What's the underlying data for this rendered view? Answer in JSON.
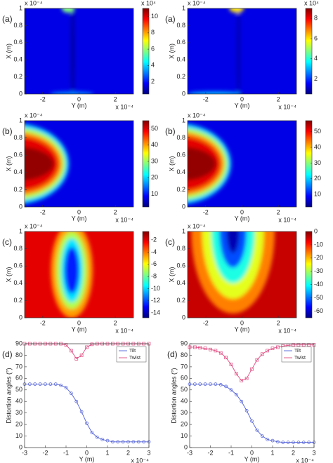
{
  "chart_data": [
    {
      "type": "heatmap",
      "panel_label": "(a)",
      "xlabel": "Y (m)",
      "ylabel": "X (m)",
      "x_multiplier": "x 10⁻⁴",
      "y_multiplier": "x 10⁻⁴",
      "xlim": [
        -3,
        3
      ],
      "xticks": [
        -2,
        0,
        2
      ],
      "ylim": [
        0,
        1
      ],
      "yticks": [
        0,
        0.2,
        0.4,
        0.6,
        0.8,
        1
      ],
      "colormap": "jet",
      "colorbar": {
        "clim": [
          0.5,
          11
        ],
        "ticks": [
          2,
          4,
          6,
          8,
          10
        ],
        "multiplier": "x 10⁴"
      }
    },
    {
      "type": "heatmap",
      "panel_label": "(a)",
      "xlabel": "Y (m)",
      "ylabel": "X (m)",
      "x_multiplier": "x 10⁻⁴",
      "y_multiplier": "x 10⁻⁴",
      "xlim": [
        -3,
        3
      ],
      "xticks": [
        -2,
        0,
        2
      ],
      "ylim": [
        0,
        1
      ],
      "yticks": [
        0,
        0.2,
        0.4,
        0.6,
        0.8,
        1
      ],
      "colormap": "jet",
      "colorbar": {
        "clim": [
          0.5,
          9
        ],
        "ticks": [
          2,
          4,
          6,
          8
        ],
        "multiplier": "x 10⁴"
      }
    },
    {
      "type": "heatmap",
      "panel_label": "(b)",
      "xlabel": "Y (m)",
      "ylabel": "X (m)",
      "x_multiplier": "x 10⁻⁴",
      "y_multiplier": "x 10⁻⁴",
      "xlim": [
        -3,
        3
      ],
      "xticks": [
        -2,
        0,
        2
      ],
      "ylim": [
        0,
        1
      ],
      "yticks": [
        0,
        0.2,
        0.4,
        0.6,
        0.8,
        1
      ],
      "colormap": "jet",
      "colorbar": {
        "clim": [
          2,
          55
        ],
        "ticks": [
          10,
          20,
          30,
          40,
          50
        ]
      }
    },
    {
      "type": "heatmap",
      "panel_label": "(b)",
      "xlabel": "Y (m)",
      "ylabel": "X (m)",
      "x_multiplier": "x 10⁻⁴",
      "y_multiplier": "x 10⁻⁴",
      "xlim": [
        -3,
        3
      ],
      "xticks": [
        -2,
        0,
        2
      ],
      "ylim": [
        0,
        1
      ],
      "yticks": [
        0,
        0.2,
        0.4,
        0.6,
        0.8,
        1
      ],
      "colormap": "jet",
      "colorbar": {
        "clim": [
          2,
          57
        ],
        "ticks": [
          10,
          20,
          30,
          40,
          50
        ]
      }
    },
    {
      "type": "heatmap",
      "panel_label": "(c)",
      "xlabel": "Y (m)",
      "ylabel": "X (m)",
      "x_multiplier": "x 10⁻⁴",
      "y_multiplier": "x 10⁻⁴",
      "xlim": [
        -3,
        3
      ],
      "xticks": [
        -2,
        0,
        2
      ],
      "ylim": [
        0,
        1
      ],
      "yticks": [
        0,
        0.2,
        0.4,
        0.6,
        0.8,
        1
      ],
      "colormap": "jet",
      "colorbar": {
        "clim": [
          -14.8,
          -0.6
        ],
        "ticks": [
          -14,
          -12,
          -10,
          -8,
          -6,
          -4,
          -2
        ]
      }
    },
    {
      "type": "heatmap",
      "panel_label": "(c)",
      "xlabel": "Y (m)",
      "ylabel": "X (m)",
      "x_multiplier": "x 10⁻⁴",
      "y_multiplier": "x 10⁻⁴",
      "xlim": [
        -3,
        3
      ],
      "xticks": [
        -2,
        0,
        2
      ],
      "ylim": [
        0,
        1
      ],
      "yticks": [
        0,
        0.2,
        0.4,
        0.6,
        0.8,
        1
      ],
      "colormap": "jet",
      "colorbar": {
        "clim": [
          -65,
          0
        ],
        "ticks": [
          -60,
          -50,
          -40,
          -30,
          -20,
          -10,
          0
        ]
      }
    },
    {
      "type": "line",
      "panel_label": "(d)",
      "xlabel": "Y (m)",
      "ylabel": "Distortion angles (°)",
      "x_multiplier": "x 10⁻⁴",
      "xlim": [
        -3,
        3
      ],
      "xticks": [
        -3,
        -2,
        -1,
        0,
        1,
        2,
        3
      ],
      "ylim": [
        0,
        90
      ],
      "yticks": [
        0,
        10,
        20,
        30,
        40,
        50,
        60,
        70,
        80,
        90
      ],
      "legend": "upper right",
      "x": [
        -3,
        -2.75,
        -2.5,
        -2.25,
        -2,
        -1.75,
        -1.5,
        -1.25,
        -1,
        -0.75,
        -0.5,
        -0.25,
        0,
        0.25,
        0.5,
        0.75,
        1,
        1.25,
        1.5,
        1.75,
        2,
        2.25,
        2.5,
        2.75,
        3
      ],
      "series": [
        {
          "name": "Tilt",
          "color": "#5060d8",
          "marker": "circle",
          "values": [
            55,
            55,
            55,
            55,
            55,
            55,
            55,
            54,
            52,
            47,
            40,
            31,
            21,
            13,
            9,
            7,
            6,
            5,
            5,
            5,
            5,
            5,
            5,
            5,
            5
          ]
        },
        {
          "name": "Twist",
          "color": "#e04a80",
          "marker": "square",
          "values": [
            90,
            90,
            90,
            90,
            90,
            90,
            90,
            90,
            89,
            84,
            77,
            80,
            87,
            89.5,
            90,
            90,
            90,
            90,
            90,
            90,
            90,
            90,
            90,
            90,
            90
          ]
        }
      ]
    },
    {
      "type": "line",
      "panel_label": "(d)",
      "xlabel": "Y (m)",
      "ylabel": "Distortion angles (°)",
      "x_multiplier": "x 10⁻⁴",
      "xlim": [
        -3,
        3
      ],
      "xticks": [
        -3,
        -2,
        -1,
        0,
        1,
        2,
        3
      ],
      "ylim": [
        0,
        90
      ],
      "yticks": [
        0,
        10,
        20,
        30,
        40,
        50,
        60,
        70,
        80,
        90
      ],
      "legend": "upper right",
      "x": [
        -3,
        -2.75,
        -2.5,
        -2.25,
        -2,
        -1.75,
        -1.5,
        -1.25,
        -1,
        -0.75,
        -0.5,
        -0.25,
        0,
        0.25,
        0.5,
        0.75,
        1,
        1.25,
        1.5,
        1.75,
        2,
        2.25,
        2.5,
        2.75,
        3
      ],
      "series": [
        {
          "name": "Tilt",
          "color": "#5060d8",
          "marker": "circle",
          "values": [
            55,
            55,
            55,
            55,
            55,
            55,
            54.5,
            53,
            50,
            46,
            40,
            32,
            23,
            15,
            10,
            7,
            6,
            5,
            4.5,
            4.5,
            4.5,
            4.5,
            4.5,
            4.5,
            4.5
          ]
        },
        {
          "name": "Twist",
          "color": "#e04a80",
          "marker": "square",
          "values": [
            87,
            87,
            86.5,
            86,
            85,
            84,
            82,
            78,
            72,
            64,
            58,
            60,
            68,
            76,
            81,
            84,
            86,
            87,
            88,
            88.5,
            89,
            89,
            89,
            89,
            89
          ]
        }
      ]
    }
  ]
}
